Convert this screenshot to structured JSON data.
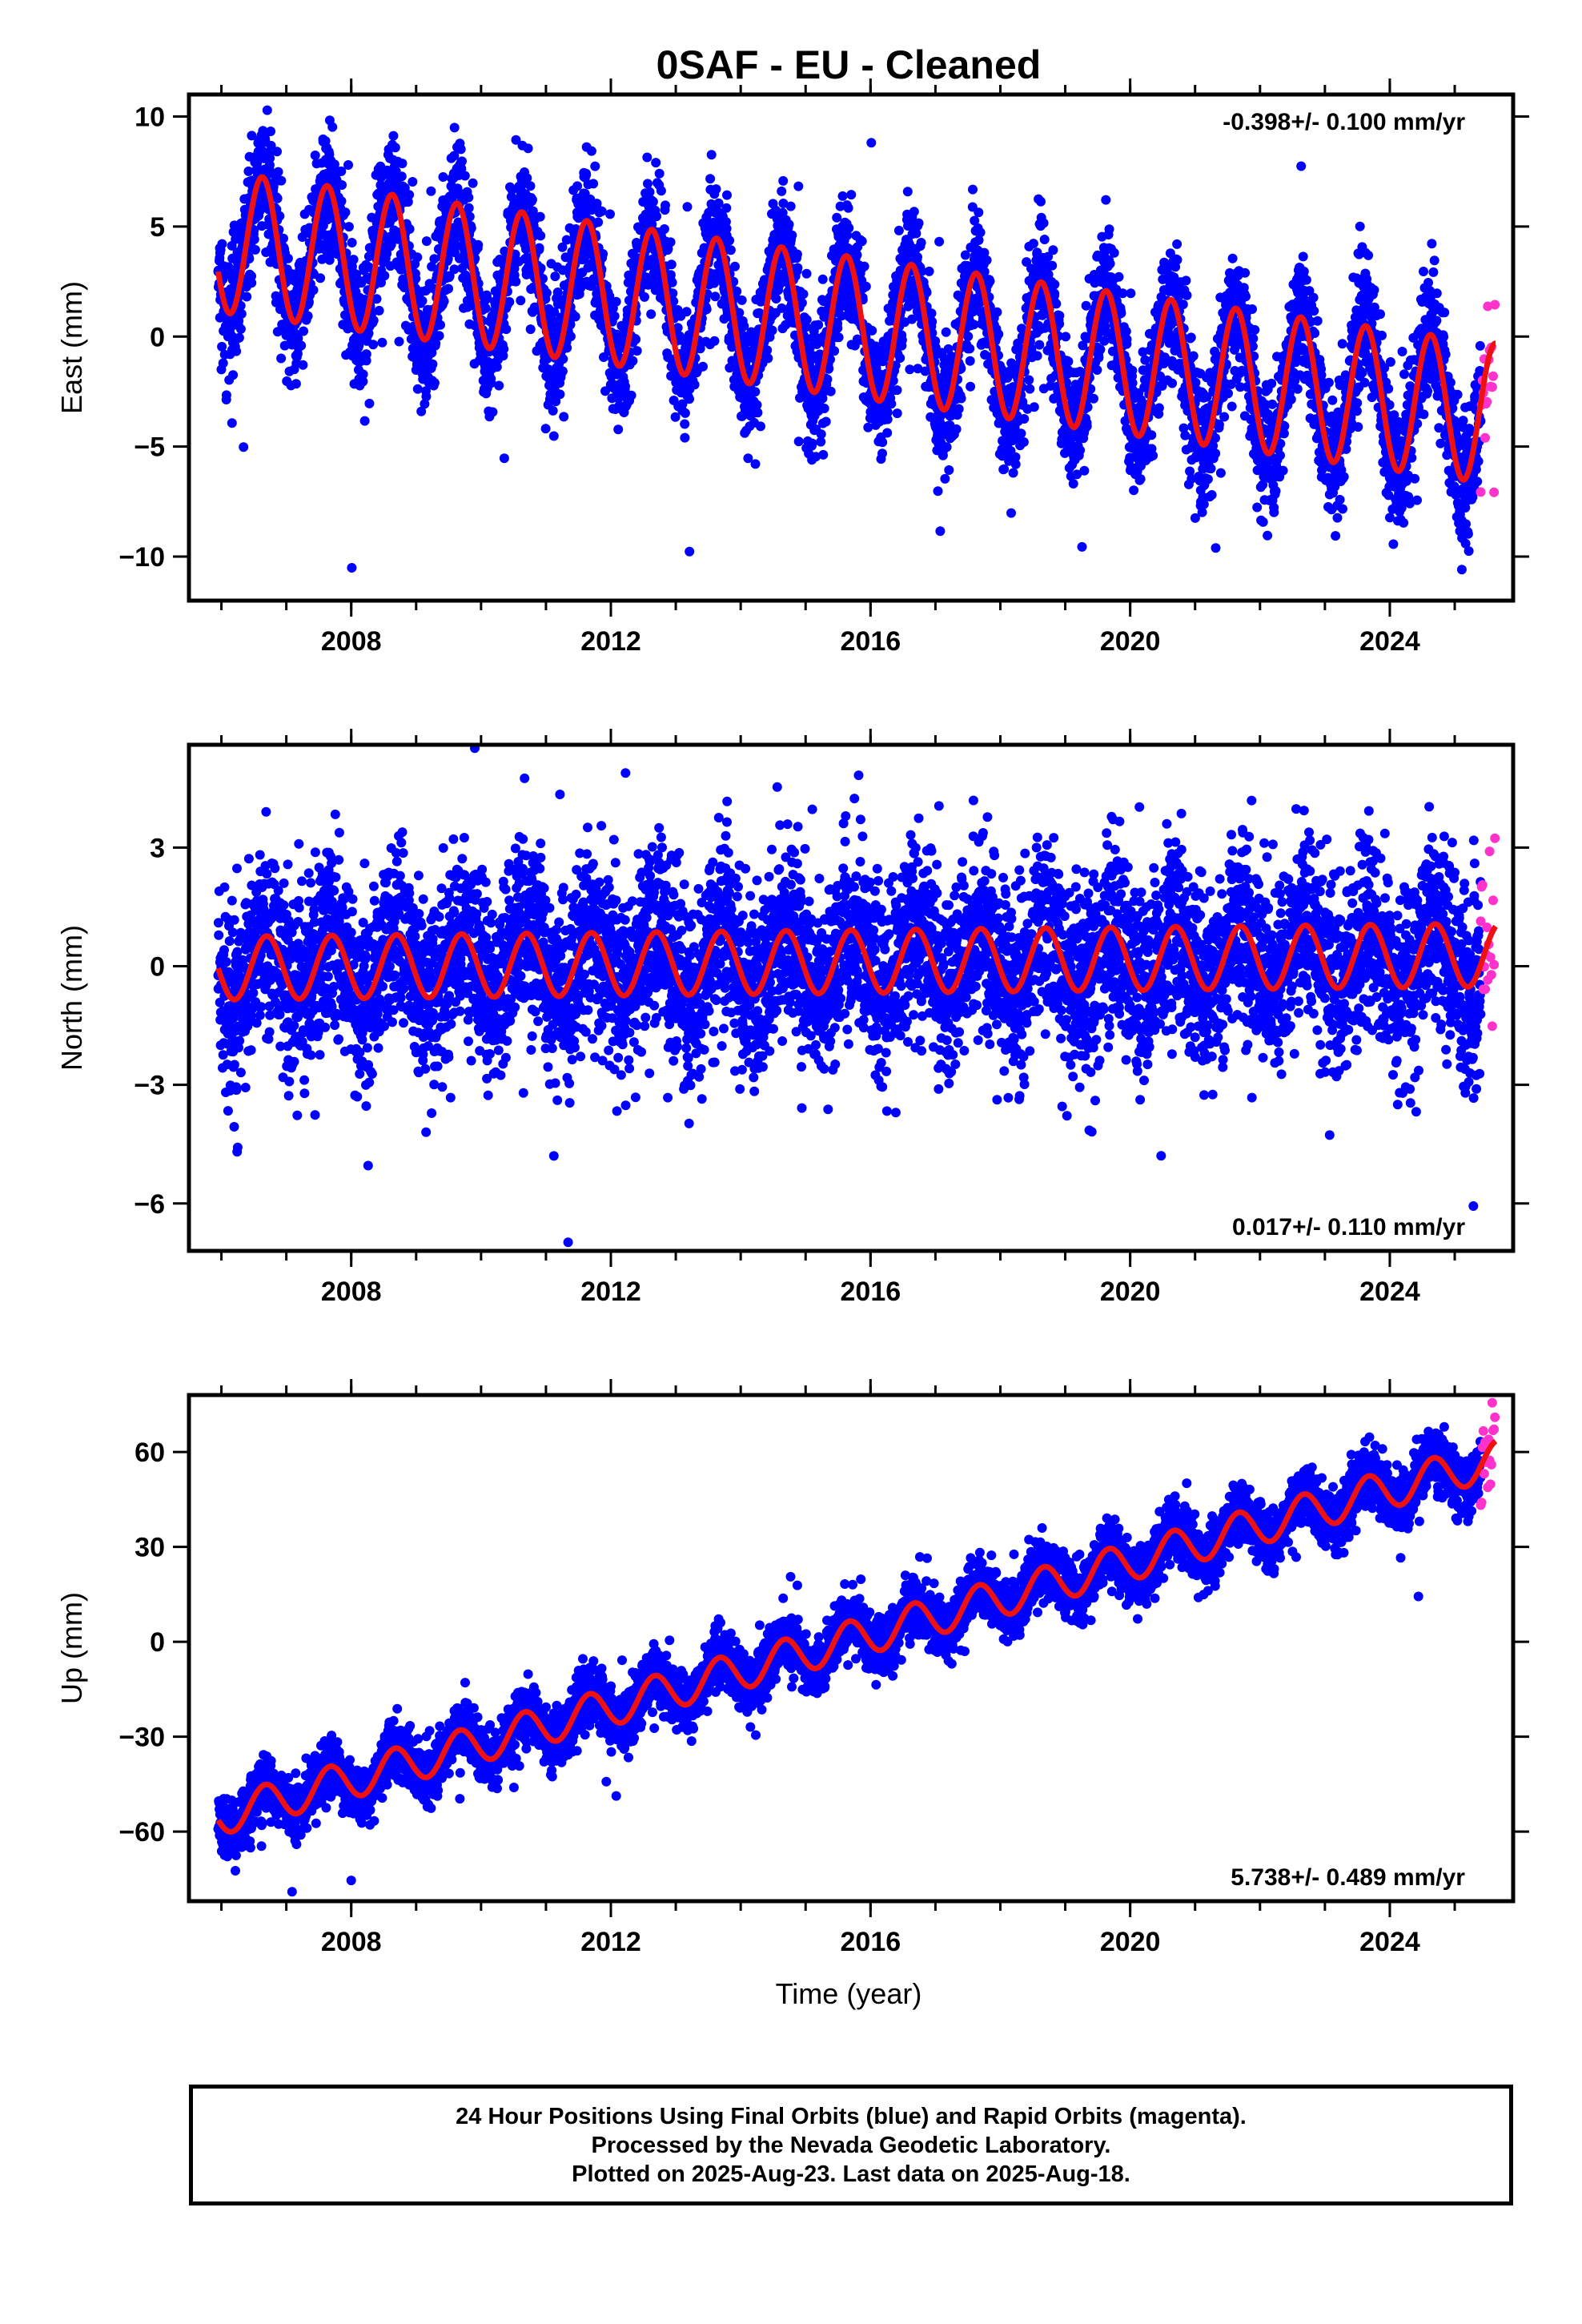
{
  "title": "0SAF  - EU - Cleaned",
  "colors": {
    "final": "#0000ff",
    "rapid": "#ff33cc",
    "model": "#ee1111"
  },
  "x_axis": {
    "label": "Time (year)",
    "ticks": [
      "2008",
      "2012",
      "2016",
      "2020",
      "2024"
    ]
  },
  "caption": {
    "line1": "24 Hour Positions Using Final Orbits (blue) and Rapid Orbits (magenta).",
    "line2": "Processed by the Nevada Geodetic Laboratory.",
    "line3": "Plotted on 2025-Aug-23. Last data on 2025-Aug-18."
  },
  "chart_data": [
    {
      "type": "scatter",
      "component": "east",
      "ylabel": "East (mm)",
      "rate": "-0.398+/- 0.100 mm/yr",
      "rate_position": "top-right",
      "xlim": [
        2005.5,
        2025.9
      ],
      "ylim": [
        -12,
        11
      ],
      "yticks": [
        "10",
        "5",
        "0",
        "-5",
        "-10"
      ],
      "start": 2005.95,
      "end_final": 2025.4,
      "end_rapid": 2025.63,
      "model": {
        "a": 4.3,
        "slope": -0.398,
        "amp": 3.2,
        "phase": 0.38,
        "scatter": 1.6
      },
      "series": [
        {
          "name": "Final Orbits (blue)",
          "values": "daily positions, 2005.95-2025.4"
        },
        {
          "name": "Rapid Orbits (magenta)",
          "values": "daily positions, 2025.4-2025.63"
        }
      ]
    },
    {
      "type": "scatter",
      "component": "north",
      "ylabel": "North (mm)",
      "rate": "0.017+/- 0.110 mm/yr",
      "rate_position": "bottom-right",
      "xlim": [
        2005.5,
        2025.9
      ],
      "ylim": [
        -7.2,
        5.6
      ],
      "yticks": [
        "3",
        "0",
        "-3",
        "-6"
      ],
      "start": 2005.95,
      "end_final": 2025.4,
      "end_rapid": 2025.63,
      "model": {
        "a": -0.05,
        "slope": 0.017,
        "amp": 0.8,
        "phase": 0.45,
        "scatter": 1.3
      },
      "series": [
        {
          "name": "Final Orbits (blue)",
          "values": "daily positions, 2005.95-2025.4"
        },
        {
          "name": "Rapid Orbits (magenta)",
          "values": "daily positions, 2025.4-2025.63"
        }
      ]
    },
    {
      "type": "scatter",
      "component": "up",
      "ylabel": "Up (mm)",
      "rate": "5.738+/- 0.489 mm/yr",
      "rate_position": "bottom-right",
      "xlim": [
        2005.5,
        2025.9
      ],
      "ylim": [
        -82,
        78
      ],
      "yticks": [
        "60",
        "30",
        "0",
        "-30",
        "-60"
      ],
      "start": 2005.95,
      "end_final": 2025.4,
      "end_rapid": 2025.63,
      "model": {
        "a": -55,
        "slope": 5.738,
        "amp": 6,
        "phase": 0.42,
        "scatter": 5
      },
      "series": [
        {
          "name": "Final Orbits (blue)",
          "values": "daily positions, 2005.95-2025.4"
        },
        {
          "name": "Rapid Orbits (magenta)",
          "values": "daily positions, 2025.4-2025.63"
        }
      ]
    }
  ]
}
